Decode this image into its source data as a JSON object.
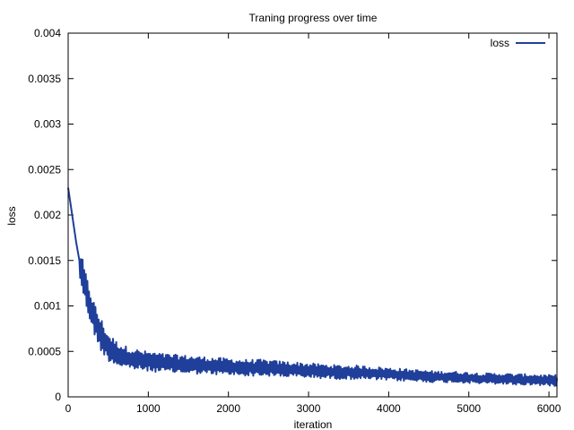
{
  "chart_data": {
    "type": "line",
    "title": "Traning progress over time",
    "xlabel": "iteration",
    "ylabel": "loss",
    "xlim": [
      0,
      6100
    ],
    "ylim": [
      0,
      0.004
    ],
    "x_ticks": [
      0,
      1000,
      2000,
      3000,
      4000,
      5000,
      6000
    ],
    "x_tick_labels": [
      "0",
      "1000",
      "2000",
      "3000",
      "4000",
      "5000",
      "6000"
    ],
    "y_ticks": [
      0,
      0.0005,
      0.001,
      0.0015,
      0.002,
      0.0025,
      0.003,
      0.0035,
      0.004
    ],
    "y_tick_labels": [
      "0",
      "0.0005",
      "0.001",
      "0.0015",
      "0.002",
      "0.0025",
      "0.003",
      "0.0035",
      "0.004"
    ],
    "grid": false,
    "legend_position": "top-right",
    "series": [
      {
        "name": "loss",
        "color": "#1f3f9a",
        "x": [
          0,
          50,
          100,
          150,
          200,
          250,
          300,
          350,
          400,
          450,
          500,
          600,
          700,
          800,
          900,
          1000,
          1200,
          1400,
          1600,
          1800,
          2000,
          2200,
          2400,
          2600,
          2800,
          3000,
          3200,
          3400,
          3600,
          3800,
          4000,
          4200,
          4400,
          4600,
          4800,
          5000,
          5200,
          5400,
          5600,
          5800,
          6000,
          6100
        ],
        "y": [
          0.0023,
          0.002,
          0.0017,
          0.00145,
          0.00125,
          0.00108,
          0.00093,
          0.0008,
          0.0007,
          0.00062,
          0.00055,
          0.00048,
          0.00044,
          0.00042,
          0.0004,
          0.00039,
          0.00037,
          0.00036,
          0.00035,
          0.00034,
          0.00033,
          0.00032,
          0.00032,
          0.00031,
          0.0003,
          0.00029,
          0.00028,
          0.00027,
          0.00027,
          0.00026,
          0.00025,
          0.00024,
          0.00023,
          0.00022,
          0.00022,
          0.00021,
          0.0002,
          0.0002,
          0.00019,
          0.00019,
          0.00018,
          0.00018
        ]
      }
    ]
  }
}
